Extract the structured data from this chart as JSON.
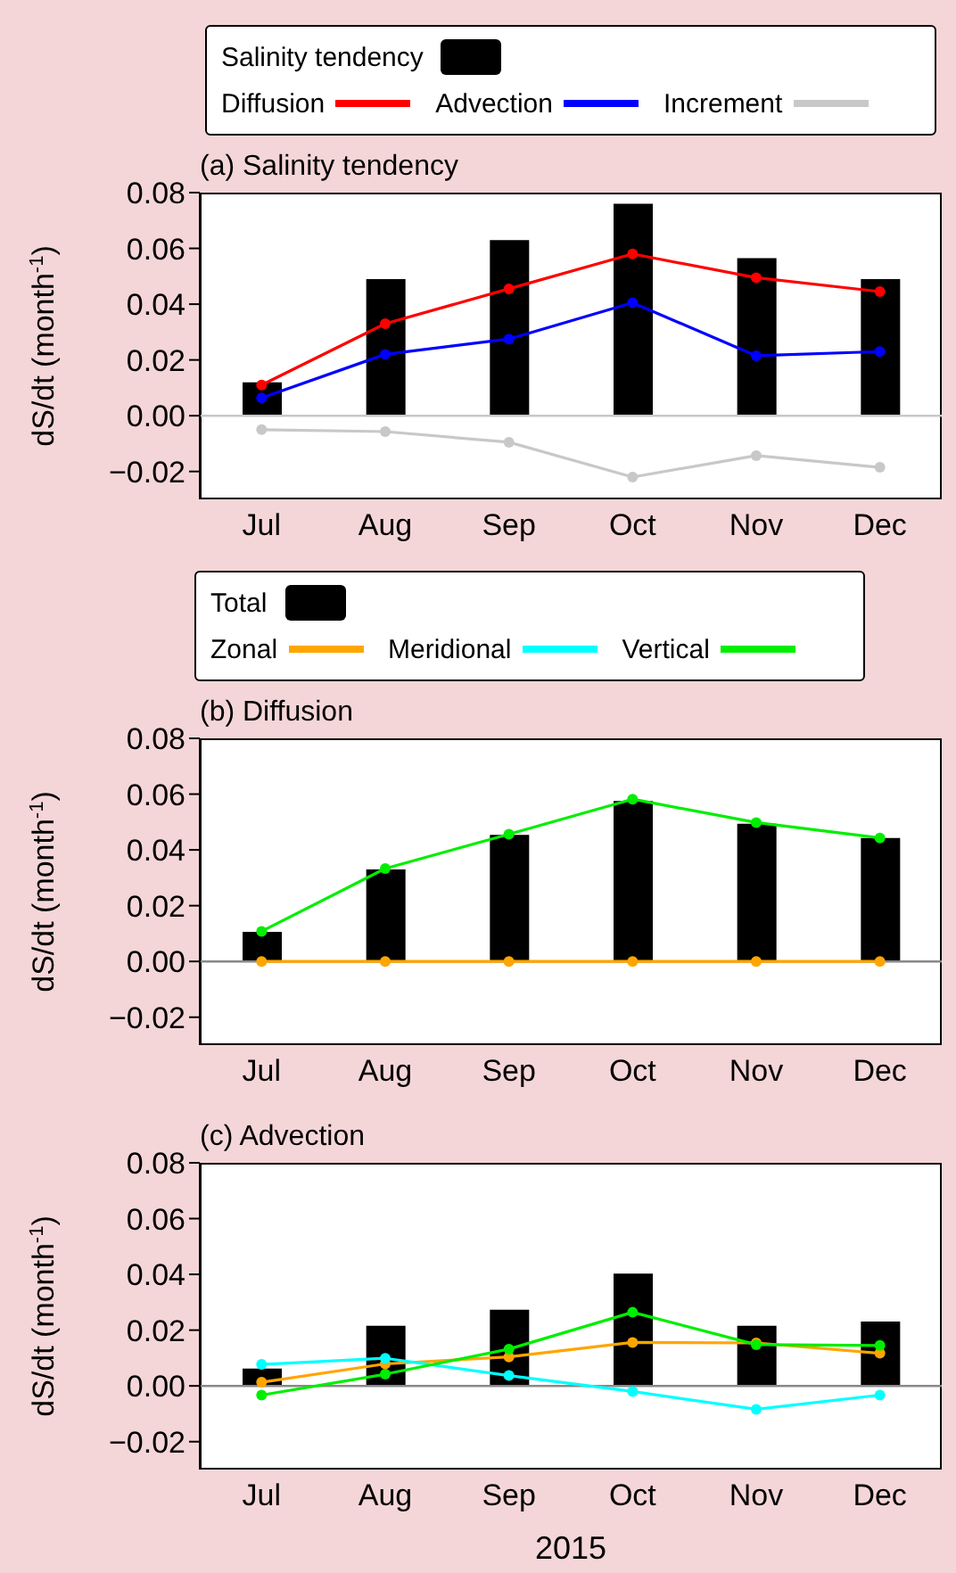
{
  "chart_data": [
    {
      "type": "bar",
      "title": "(a) Salinity tendency",
      "ylabel": "dS/dt (month$^{-1}$)",
      "categories": [
        "Jul",
        "Aug",
        "Sep",
        "Oct",
        "Nov",
        "Dec"
      ],
      "series": [
        {
          "name": "Salinity tendency",
          "type": "bar",
          "color": "#000000",
          "values": [
            0.012,
            0.049,
            0.063,
            0.076,
            0.0565,
            0.049
          ]
        },
        {
          "name": "Diffusion",
          "type": "line",
          "color": "#ff0000",
          "values": [
            0.011,
            0.033,
            0.0455,
            0.058,
            0.0495,
            0.0445
          ]
        },
        {
          "name": "Advection",
          "type": "line",
          "color": "#0000ff",
          "values": [
            0.0064,
            0.022,
            0.0275,
            0.0405,
            0.0215,
            0.023
          ]
        },
        {
          "name": "Increment",
          "type": "line",
          "color": "#c8c8c8",
          "values": [
            -0.005,
            -0.0057,
            -0.0095,
            -0.022,
            -0.0143,
            -0.0185
          ]
        }
      ],
      "ylim": [
        -0.03,
        0.08
      ],
      "yticks": [
        {
          "value": -0.02,
          "label": "−0.02"
        },
        {
          "value": 0,
          "label": "0.00"
        },
        {
          "value": 0.02,
          "label": "0.02"
        },
        {
          "value": 0.04,
          "label": "0.04"
        },
        {
          "value": 0.06,
          "label": "0.06"
        },
        {
          "value": 0.08,
          "label": "0.08"
        }
      ],
      "ref_lines": [
        {
          "axis": "y",
          "value": 0,
          "color": "#c8c8c8"
        }
      ],
      "legend": "top",
      "marker": "circle"
    },
    {
      "type": "bar",
      "title": "(b) Diffusion",
      "ylabel": "dS/dt (month$^{-1}$)",
      "categories": [
        "Jul",
        "Aug",
        "Sep",
        "Oct",
        "Nov",
        "Dec"
      ],
      "series": [
        {
          "name": "Total",
          "type": "bar",
          "color": "#000000",
          "values": [
            0.0106,
            0.033,
            0.0454,
            0.0575,
            0.0494,
            0.0443
          ]
        },
        {
          "name": "Zonal",
          "type": "line",
          "color": "#ffa500",
          "values": [
            0,
            0,
            0,
            0,
            0,
            0
          ]
        },
        {
          "name": "Meridional",
          "type": "line",
          "color": "#00ffff",
          "values": [
            null,
            null,
            null,
            null,
            null,
            null
          ]
        },
        {
          "name": "Vertical",
          "type": "line",
          "color": "#00ee00",
          "values": [
            0.0108,
            0.0333,
            0.0456,
            0.0582,
            0.0498,
            0.0443
          ]
        }
      ],
      "ylim": [
        -0.03,
        0.08
      ],
      "yticks": [
        {
          "value": -0.02,
          "label": "−0.02"
        },
        {
          "value": 0,
          "label": "0.00"
        },
        {
          "value": 0.02,
          "label": "0.02"
        },
        {
          "value": 0.04,
          "label": "0.04"
        },
        {
          "value": 0.06,
          "label": "0.06"
        },
        {
          "value": 0.08,
          "label": "0.08"
        }
      ],
      "ref_lines": [
        {
          "axis": "y",
          "value": 0,
          "color": "#888888"
        }
      ],
      "legend": "top",
      "marker": "circle"
    },
    {
      "type": "bar",
      "title": "(c) Advection",
      "ylabel": "dS/dt (month$^{-1}$)",
      "xlabel": "2015",
      "categories": [
        "Jul",
        "Aug",
        "Sep",
        "Oct",
        "Nov",
        "Dec"
      ],
      "series": [
        {
          "type": "bar",
          "color": "#000000",
          "values": [
            0.0062,
            0.0216,
            0.0273,
            0.0403,
            0.0216,
            0.0231
          ]
        },
        {
          "type": "line",
          "color": "#ffa500",
          "values": [
            0.0013,
            0.0079,
            0.0104,
            0.0156,
            0.0154,
            0.0117
          ]
        },
        {
          "type": "line",
          "color": "#00ffff",
          "values": [
            0.0077,
            0.0099,
            0.0037,
            -0.002,
            -0.0084,
            -0.0033
          ]
        },
        {
          "type": "line",
          "color": "#00ee00",
          "values": [
            -0.0033,
            0.0042,
            0.0132,
            0.0264,
            0.0148,
            0.0145
          ]
        }
      ],
      "ylim": [
        -0.03,
        0.08
      ],
      "yticks": [
        {
          "value": -0.02,
          "label": "−0.02"
        },
        {
          "value": 0,
          "label": "0.00"
        },
        {
          "value": 0.02,
          "label": "0.02"
        },
        {
          "value": 0.04,
          "label": "0.04"
        },
        {
          "value": 0.06,
          "label": "0.06"
        },
        {
          "value": 0.08,
          "label": "0.08"
        }
      ],
      "ref_lines": [
        {
          "axis": "y",
          "value": 0,
          "color": "#888888"
        }
      ],
      "marker": "circle"
    }
  ]
}
